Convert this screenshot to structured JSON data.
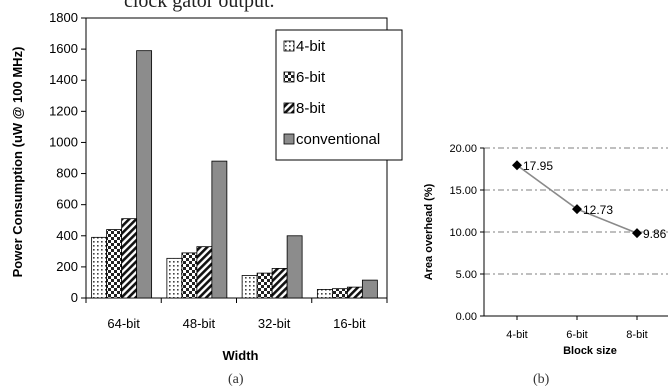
{
  "header_text": "clock gator output.",
  "chart_data": [
    {
      "type": "bar",
      "caption": "(a)",
      "xlabel": "Width",
      "ylabel": "Power Consumption (uW @ 100 MHz)",
      "categories": [
        "64-bit",
        "48-bit",
        "32-bit",
        "16-bit"
      ],
      "ylim": [
        0,
        1800
      ],
      "yticks": [
        "0",
        "200",
        "400",
        "600",
        "800",
        "1000",
        "1200",
        "1400",
        "1600",
        "1800"
      ],
      "series": [
        {
          "name": "4-bit",
          "values": [
            390,
            255,
            145,
            55
          ],
          "pattern": "dots",
          "color": "#ffffff"
        },
        {
          "name": "6-bit",
          "values": [
            440,
            290,
            160,
            60
          ],
          "pattern": "checker",
          "color": "#ffffff"
        },
        {
          "name": "8-bit",
          "values": [
            510,
            330,
            190,
            70
          ],
          "pattern": "diag",
          "color": "#ffffff"
        },
        {
          "name": "conventional",
          "values": [
            1590,
            880,
            400,
            115
          ],
          "pattern": "solid",
          "color": "#8c8c8c"
        }
      ],
      "legend_position": "top-right",
      "grid": false
    },
    {
      "type": "line",
      "caption": "(b)",
      "xlabel": "Block size",
      "ylabel": "Area overhead (%)",
      "categories": [
        "4-bit",
        "6-bit",
        "8-bit"
      ],
      "values": [
        17.95,
        12.73,
        9.86
      ],
      "data_labels": [
        "17.95",
        "12.73",
        "9.86"
      ],
      "ylim": [
        0,
        20
      ],
      "yticks": [
        "0.00",
        "5.00",
        "10.00",
        "15.00",
        "20.00"
      ],
      "grid": true,
      "line_color": "#8a8a8a",
      "marker_color": "#000000"
    }
  ]
}
